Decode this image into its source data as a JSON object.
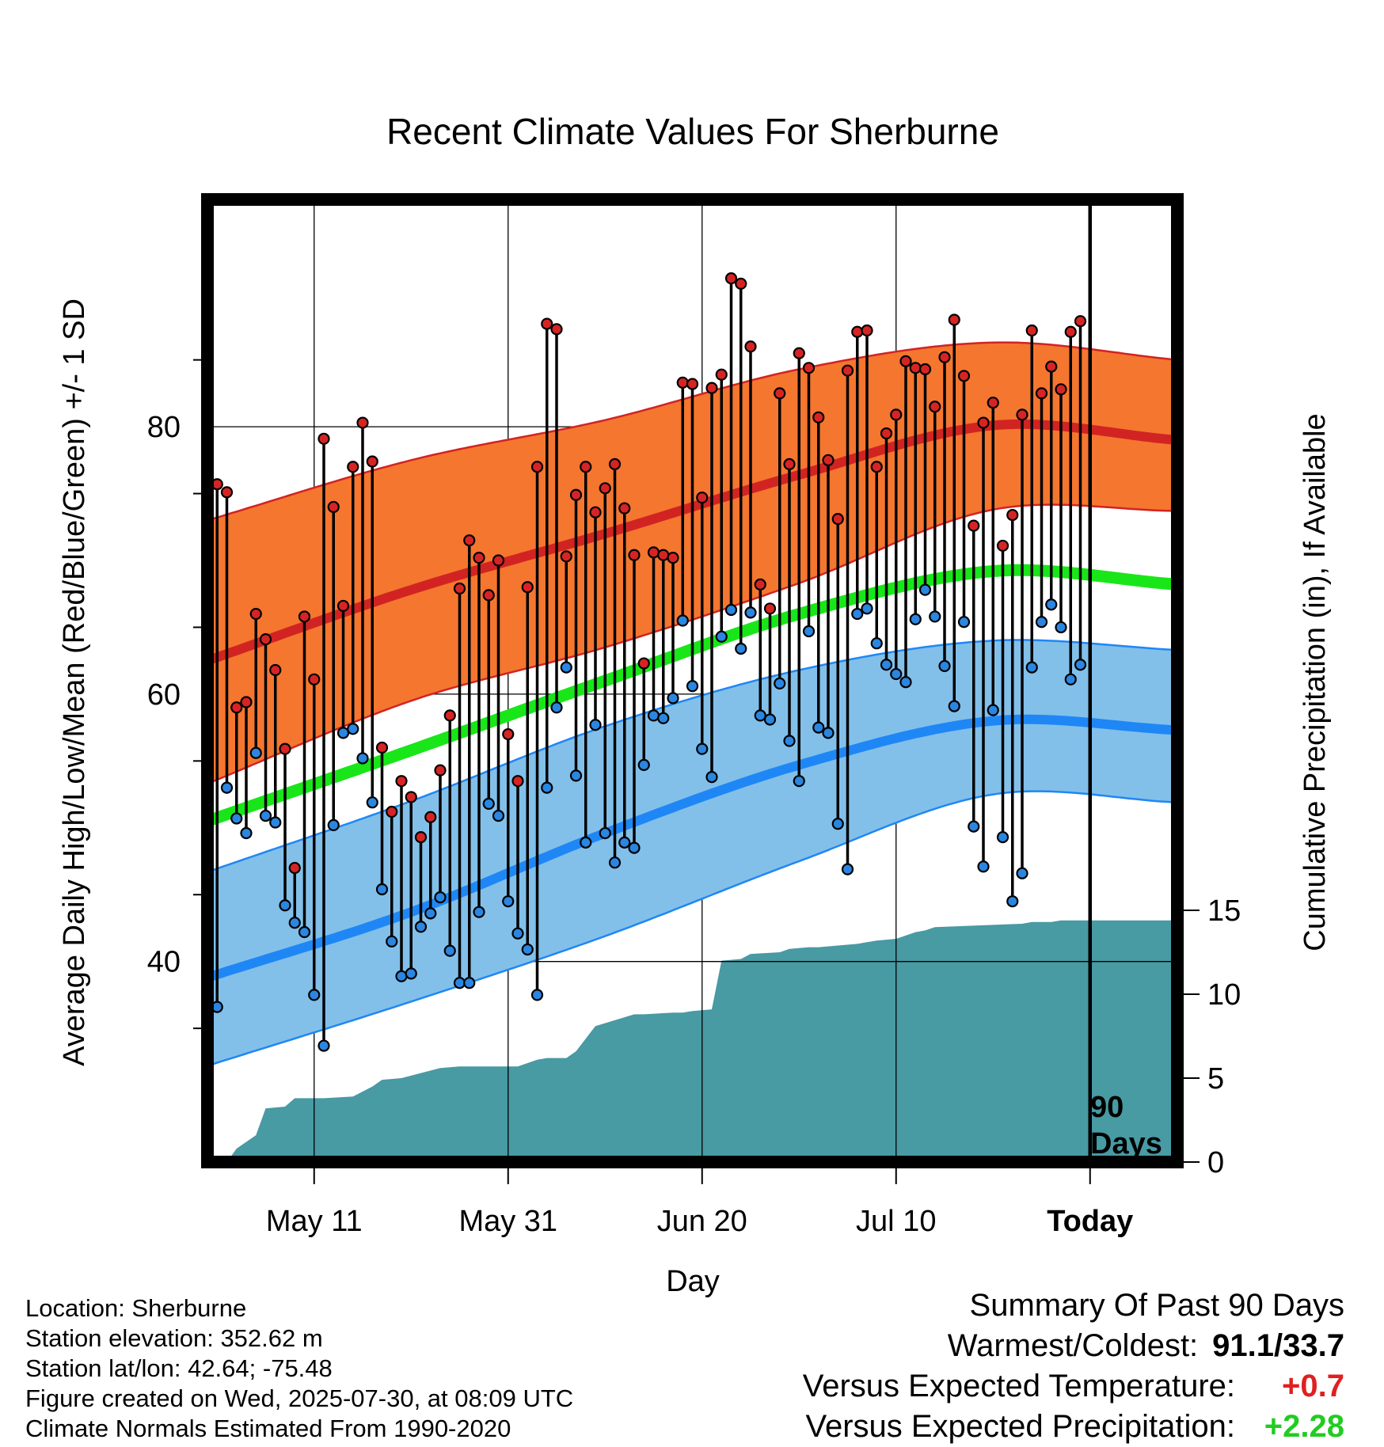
{
  "chart_data": {
    "type": "line",
    "title": "Recent Climate Values For Sherburne",
    "xlabel": "Day",
    "ylabel_left": "Average Daily High/Low/Mean (Red/Blue/Green) +/- 1 SD",
    "ylabel_right": "Cumulative Precipitation (in), If Available",
    "x_ticks": [
      "May 11",
      "May 31",
      "Jun 20",
      "Jul 10",
      "Today"
    ],
    "x_tick_days": [
      -80,
      -60,
      -40,
      -20,
      0
    ],
    "x_range_days": [
      -91,
      9
    ],
    "y_left_range": [
      25,
      97
    ],
    "y_left_ticks": [
      40,
      60,
      80
    ],
    "y_right_ticks": [
      0,
      5,
      10,
      15
    ],
    "grid": true,
    "today_marker_label": [
      "90",
      "Days"
    ],
    "normals_days": [
      -91,
      -70,
      -50,
      -30,
      -10,
      9
    ],
    "normal_high": [
      62.5,
      67.8,
      72.0,
      76.4,
      80.1,
      79.0
    ],
    "normal_high_sd_upper": [
      73.0,
      77.5,
      80.5,
      84.3,
      86.3,
      85.0
    ],
    "normal_high_sd_lower": [
      53.3,
      59.5,
      63.5,
      68.3,
      73.8,
      73.7
    ],
    "normal_mean": [
      50.5,
      55.8,
      61.0,
      66.0,
      69.2,
      68.2
    ],
    "normal_low": [
      38.8,
      43.7,
      49.6,
      54.7,
      58.0,
      57.3
    ],
    "normal_low_sd_upper": [
      46.7,
      52.0,
      57.6,
      61.8,
      64.0,
      63.3
    ],
    "normal_low_sd_lower": [
      32.2,
      37.0,
      41.9,
      47.5,
      52.5,
      51.9
    ],
    "highs": [
      75.7,
      75.1,
      59.0,
      59.4,
      66.0,
      64.1,
      61.8,
      55.9,
      47.0,
      65.8,
      61.1,
      79.1,
      74.0,
      66.6,
      77.0,
      80.3,
      77.4,
      56.0,
      51.2,
      53.5,
      52.3,
      49.3,
      50.8,
      54.3,
      58.4,
      67.9,
      71.5,
      70.2,
      67.4,
      70.0,
      57.0,
      53.5,
      68.0,
      77.0,
      87.7,
      87.3,
      70.3,
      74.9,
      77.0,
      73.6,
      75.4,
      77.2,
      73.9,
      70.4,
      62.3,
      70.6,
      70.4,
      70.2,
      83.3,
      83.2,
      74.7,
      82.9,
      83.9,
      91.1,
      90.7,
      86.0,
      68.2,
      66.4,
      82.5,
      77.2,
      85.5,
      84.4,
      80.7,
      77.5,
      73.1,
      84.2,
      87.1,
      87.2,
      77.0,
      79.5,
      80.9,
      84.9,
      84.4,
      84.3,
      81.5,
      85.2,
      88.0,
      83.8,
      72.6,
      80.3,
      81.8,
      71.1,
      73.4,
      80.9,
      87.2,
      82.5,
      84.5,
      82.8,
      87.1,
      87.9
    ],
    "lows": [
      36.6,
      53.0,
      50.7,
      49.6,
      55.6,
      50.9,
      50.4,
      44.2,
      42.9,
      42.2,
      37.5,
      33.7,
      50.2,
      57.1,
      57.4,
      55.2,
      51.9,
      45.4,
      41.5,
      38.9,
      39.1,
      42.6,
      43.6,
      44.8,
      40.8,
      38.4,
      38.4,
      43.7,
      51.8,
      50.9,
      44.5,
      42.1,
      40.9,
      37.5,
      53.0,
      59.0,
      62.0,
      53.9,
      48.9,
      57.7,
      49.6,
      47.4,
      48.9,
      48.5,
      54.7,
      58.4,
      58.2,
      59.7,
      65.5,
      60.6,
      55.9,
      53.8,
      64.3,
      66.3,
      63.4,
      66.1,
      58.4,
      58.1,
      60.8,
      56.5,
      53.5,
      64.7,
      57.5,
      57.1,
      50.3,
      46.9,
      66.0,
      66.4,
      63.8,
      62.2,
      61.5,
      60.9,
      65.6,
      67.8,
      65.8,
      62.1,
      59.1,
      65.4,
      50.1,
      47.1,
      58.8,
      49.3,
      44.5,
      46.6,
      62.0,
      65.4,
      66.7,
      65.0,
      61.1,
      62.2
    ],
    "precip_days": [
      -91,
      -89,
      -88,
      -86,
      -85,
      -83,
      -82,
      -79,
      -76,
      -74,
      -73,
      -71,
      -67,
      -65,
      -59,
      -57,
      -56,
      -54,
      -53,
      -51,
      -47,
      -46,
      -43,
      -42,
      -41,
      -39,
      -38,
      -36,
      -35,
      -32,
      -31,
      -29,
      -28,
      -26,
      -24,
      -23,
      -22,
      -20,
      -18,
      -17,
      -16,
      -7,
      -6,
      -4,
      -3,
      9
    ],
    "precip_cum": [
      0.0,
      0.0,
      0.8,
      1.6,
      3.2,
      3.3,
      3.8,
      3.8,
      3.9,
      4.5,
      4.9,
      5.0,
      5.6,
      5.7,
      5.7,
      6.1,
      6.2,
      6.2,
      6.6,
      8.1,
      8.8,
      8.8,
      8.9,
      8.9,
      9.0,
      9.1,
      12.0,
      12.1,
      12.4,
      12.5,
      12.7,
      12.8,
      12.8,
      12.9,
      13.0,
      13.1,
      13.2,
      13.3,
      13.7,
      13.8,
      14.0,
      14.2,
      14.3,
      14.3,
      14.4,
      14.4
    ]
  },
  "info": {
    "location": "Location: Sherburne",
    "elevation": "Station elevation: 352.62 m",
    "latlon": "Station lat/lon: 42.64; -75.48",
    "created": "Figure created on Wed, 2025-07-30, at 08:09 UTC",
    "normals": "Climate Normals Estimated From 1990-2020"
  },
  "summary": {
    "heading": "Summary Of Past 90 Days",
    "warm_cold_label": "Warmest/Coldest:",
    "warm_cold_value": "91.1/33.7",
    "temp_label": "Versus Expected Temperature:",
    "temp_value": "+0.7",
    "precip_label": "Versus Expected Precipitation:",
    "precip_value": "+2.28"
  },
  "colors": {
    "high_band": "#f4762f",
    "high_line": "#d22323",
    "low_band": "#82c0ea",
    "low_line": "#1f87f5",
    "mean_line": "#19e619",
    "precip_fill": "#489aa3",
    "high_dot": "#d62424",
    "low_dot": "#2a86e0",
    "temp_delta": "#e02020",
    "precip_delta": "#22cc22"
  }
}
